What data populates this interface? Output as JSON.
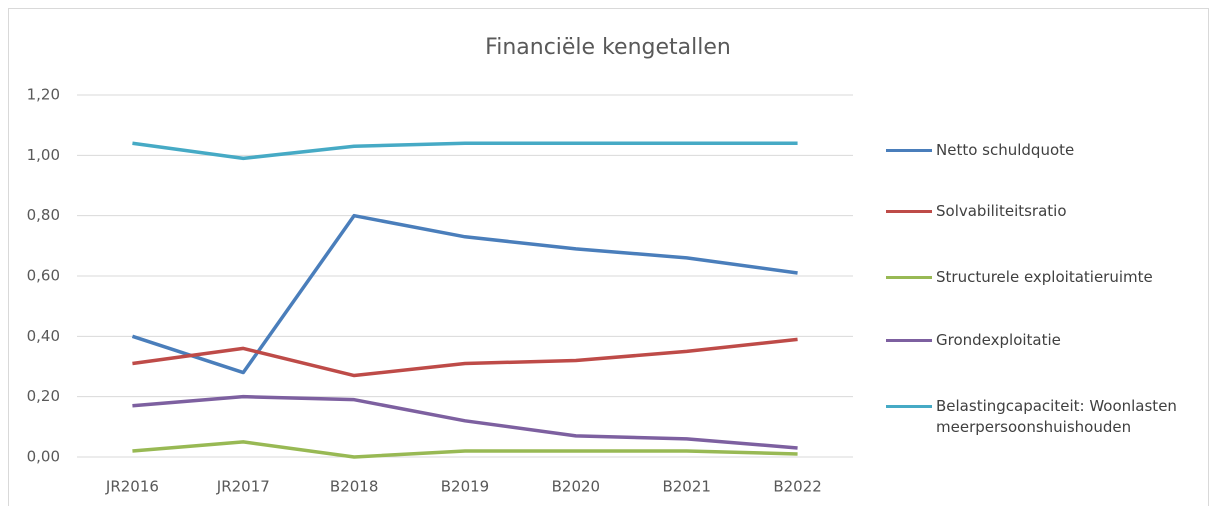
{
  "chart_data": {
    "type": "line",
    "title": "Financiële kengetallen",
    "categories": [
      "JR2016",
      "JR2017",
      "B2018",
      "B2019",
      "B2020",
      "B2021",
      "B2022"
    ],
    "series": [
      {
        "name": "Netto schuldquote",
        "color": "#4a7ebb",
        "values": [
          0.4,
          0.28,
          0.8,
          0.73,
          0.69,
          0.66,
          0.61
        ]
      },
      {
        "name": "Solvabiliteitsratio",
        "color": "#be4b48",
        "values": [
          0.31,
          0.36,
          0.27,
          0.31,
          0.32,
          0.35,
          0.39
        ]
      },
      {
        "name": "Structurele exploitatieruimte",
        "color": "#98b954",
        "values": [
          0.02,
          0.05,
          0.0,
          0.02,
          0.02,
          0.02,
          0.01
        ]
      },
      {
        "name": "Grondexploitatie",
        "color": "#7d60a0",
        "values": [
          0.17,
          0.2,
          0.19,
          0.12,
          0.07,
          0.06,
          0.03
        ]
      },
      {
        "name": "Belastingcapaciteit: Woonlasten meerpersoonshuishouden",
        "color": "#46aac5",
        "values": [
          1.04,
          0.99,
          1.03,
          1.04,
          1.04,
          1.04,
          1.04
        ]
      }
    ],
    "ylim": [
      0,
      1.2
    ],
    "yticks": [
      {
        "value": 0,
        "label": "0,00"
      },
      {
        "value": 0.2,
        "label": "0,20"
      },
      {
        "value": 0.4,
        "label": "0,40"
      },
      {
        "value": 0.6,
        "label": "0,60"
      },
      {
        "value": 0.8,
        "label": "0,80"
      },
      {
        "value": 1.0,
        "label": "1,00"
      },
      {
        "value": 1.2,
        "label": "1,20"
      }
    ],
    "grid": true,
    "legend": "right"
  }
}
